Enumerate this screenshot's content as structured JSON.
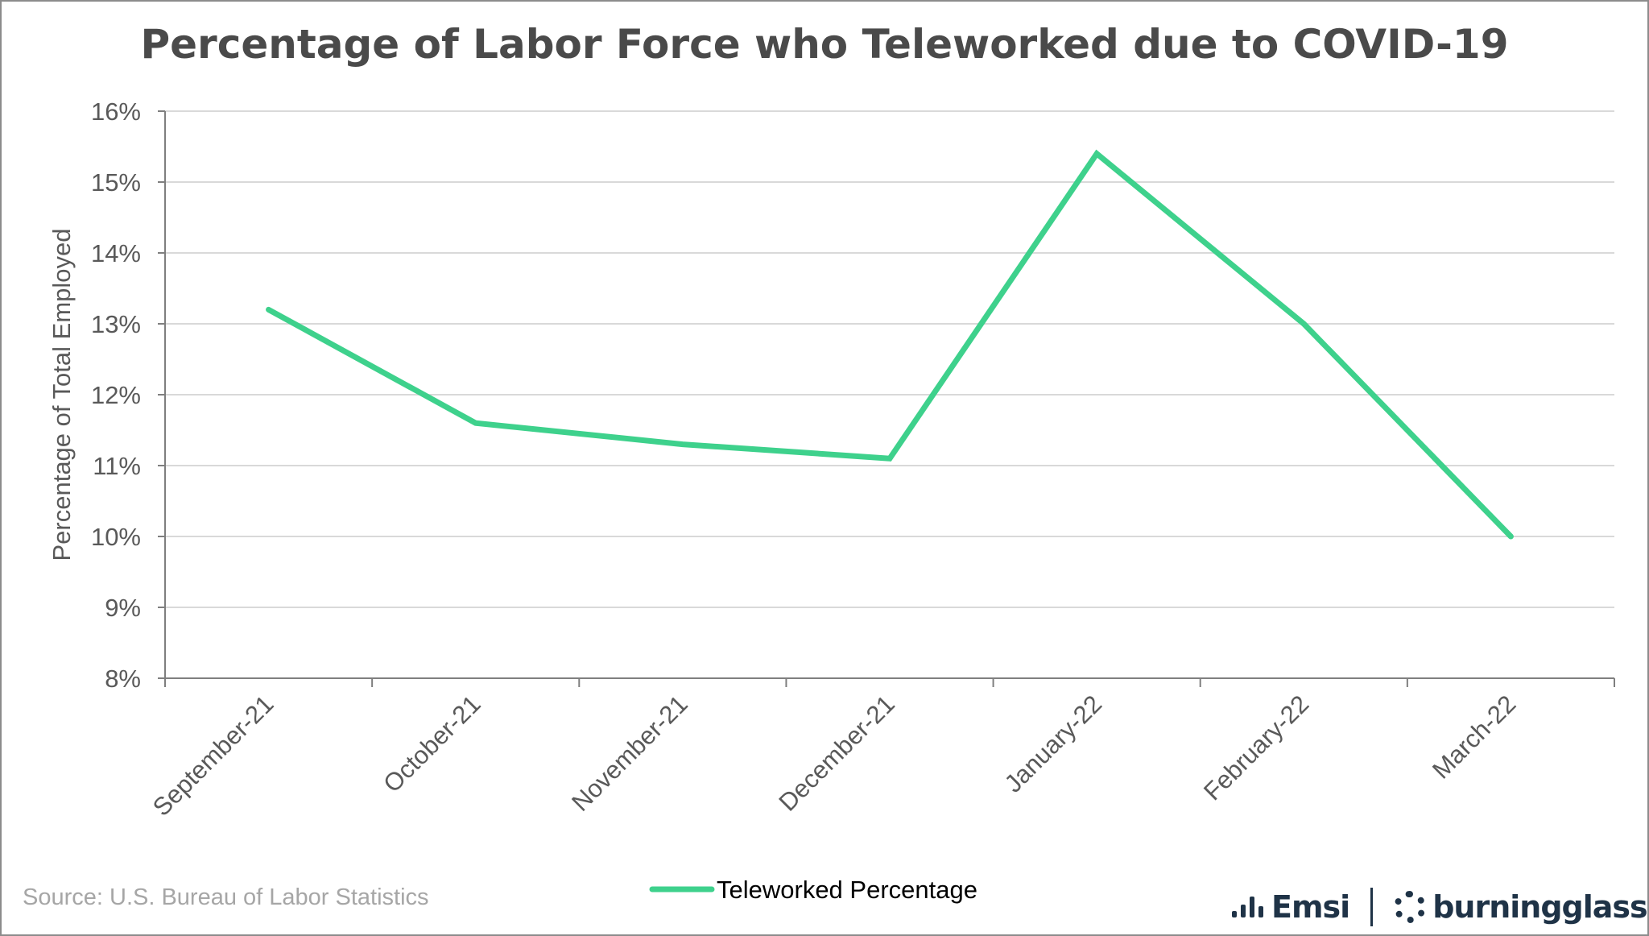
{
  "chart_data": {
    "type": "line",
    "title": "Percentage of Labor Force who Teleworked due to COVID-19",
    "xlabel": "",
    "ylabel": "Percentage of Total Employed",
    "categories": [
      "September-21",
      "October-21",
      "November-21",
      "December-21",
      "January-22",
      "February-22",
      "March-22"
    ],
    "series": [
      {
        "name": "Teleworked Percentage",
        "values": [
          13.2,
          11.6,
          11.3,
          11.1,
          15.4,
          13.0,
          10.0
        ],
        "color": "#3ed18c"
      }
    ],
    "ylim": [
      8,
      16
    ],
    "yticks": [
      "8%",
      "9%",
      "10%",
      "11%",
      "12%",
      "13%",
      "14%",
      "15%",
      "16%"
    ],
    "grid": true,
    "legend": "bottom-center"
  },
  "footer": {
    "source": "Source:  U.S. Bureau of Labor Statistics",
    "logo_emsi": "Emsi",
    "logo_burningglass": "burningglass"
  },
  "colors": {
    "line": "#3ed18c",
    "grid": "#d9d9d9",
    "axis": "#7f7f7f",
    "text": "#595959",
    "logo": "#1f3347"
  }
}
